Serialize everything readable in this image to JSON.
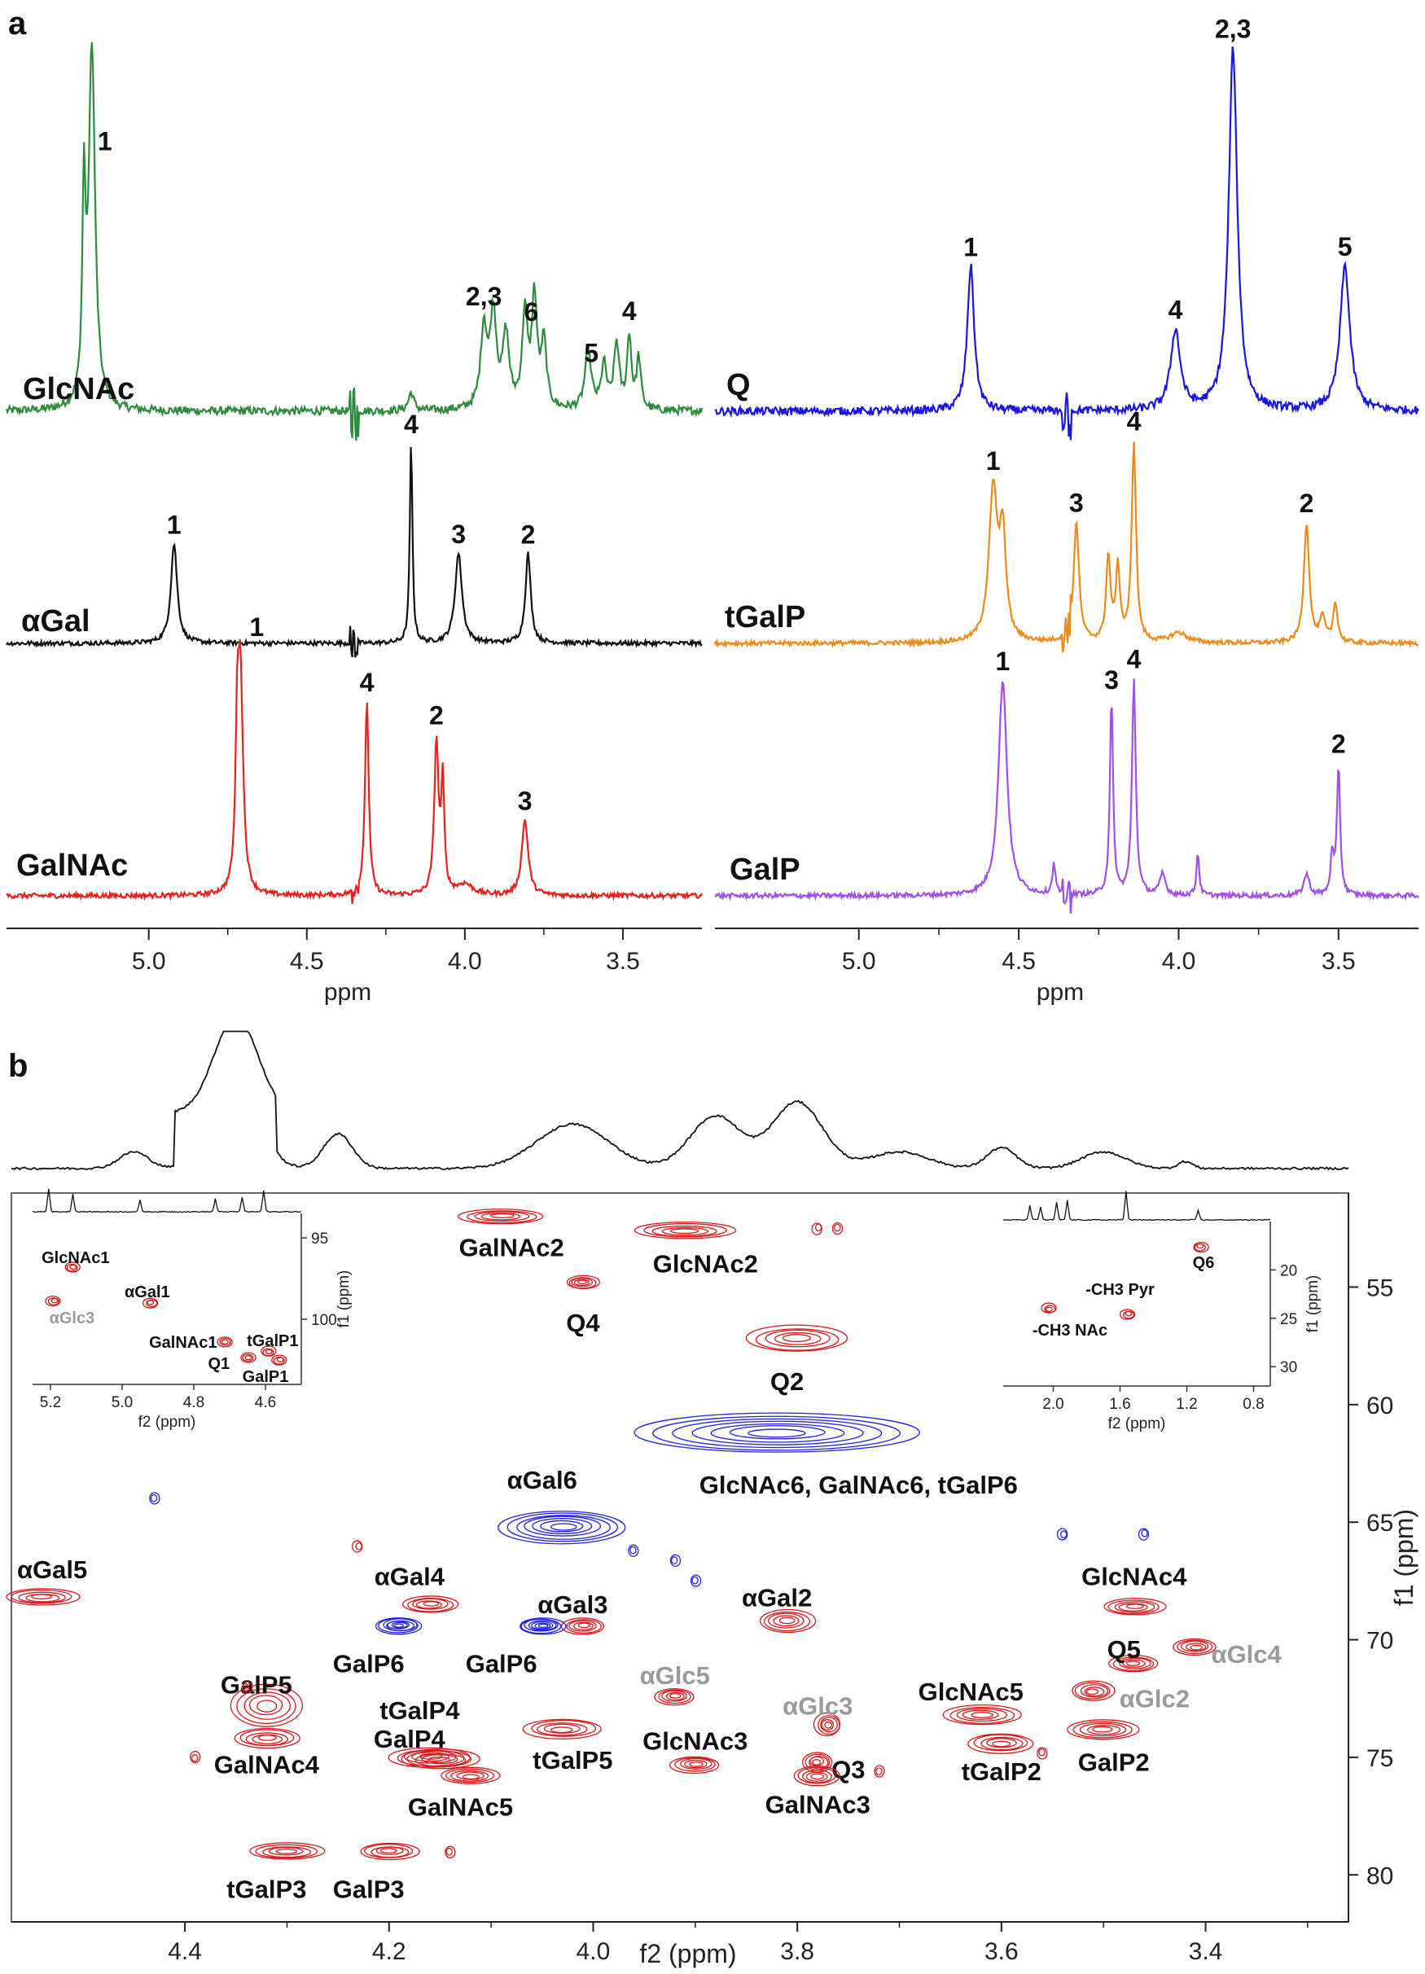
{
  "panel_labels": {
    "a": "a",
    "b": "b"
  },
  "panel_a": {
    "xlabel": "ppm",
    "ticks": [
      "5.0",
      "4.5",
      "4.0",
      "3.5"
    ],
    "spectra": [
      {
        "name": "GlcNAc",
        "color": "#2e8b3e",
        "peak_labels": [
          "1",
          "2,3",
          "6",
          "5",
          "4"
        ]
      },
      {
        "name": "αGal",
        "color": "#111111",
        "peak_labels": [
          "1",
          "4",
          "3",
          "2"
        ]
      },
      {
        "name": "GalNAc",
        "color": "#e8211c",
        "peak_labels": [
          "1",
          "4",
          "2",
          "3"
        ]
      },
      {
        "name": "Q",
        "color": "#1a16e0",
        "peak_labels": [
          "1",
          "4",
          "2,3",
          "5"
        ]
      },
      {
        "name": "tGalP",
        "color": "#ee8a1a",
        "peak_labels": [
          "1",
          "3",
          "4",
          "2"
        ]
      },
      {
        "name": "GalP",
        "color": "#a050e8",
        "peak_labels": [
          "1",
          "3",
          "4",
          "2"
        ]
      }
    ]
  },
  "panel_b": {
    "xlabel": "f2 (ppm)",
    "ylabel": "f1 (ppm)",
    "xticks": [
      "4.4",
      "4.2",
      "4.0",
      "3.8",
      "3.6",
      "3.4"
    ],
    "yticks": [
      "55",
      "60",
      "65",
      "70",
      "75",
      "80"
    ],
    "inset_left": {
      "xlabel": "f2 (ppm)",
      "ylabel": "f1 (ppm)",
      "xticks": [
        "5.2",
        "5.0",
        "4.8",
        "4.6"
      ],
      "yticks": [
        "95",
        "100"
      ]
    },
    "inset_right": {
      "xlabel": "f2 (ppm)",
      "ylabel": "f1 (ppm)",
      "xticks": [
        "2.0",
        "1.6",
        "1.2",
        "0.8"
      ],
      "yticks": [
        "20",
        "25",
        "30"
      ]
    }
  },
  "chart_data": [
    {
      "type": "line",
      "panel": "a-left",
      "xlabel": "ppm",
      "xlim": [
        5.45,
        3.25
      ],
      "series": [
        {
          "name": "GlcNAc",
          "peaks": [
            {
              "label": "1",
              "x": 5.18
            },
            {
              "label": "2,3",
              "x": 3.94
            },
            {
              "label": "6",
              "x": 3.79
            },
            {
              "label": "5",
              "x": 3.6
            },
            {
              "label": "4",
              "x": 3.48
            }
          ]
        },
        {
          "name": "αGal",
          "peaks": [
            {
              "label": "1",
              "x": 4.92
            },
            {
              "label": "4",
              "x": 4.17
            },
            {
              "label": "3",
              "x": 4.02
            },
            {
              "label": "2",
              "x": 3.8
            }
          ]
        },
        {
          "name": "GalNAc",
          "peaks": [
            {
              "label": "1",
              "x": 4.71
            },
            {
              "label": "4",
              "x": 4.31
            },
            {
              "label": "2",
              "x": 4.09
            },
            {
              "label": "3",
              "x": 3.81
            }
          ]
        }
      ]
    },
    {
      "type": "line",
      "panel": "a-right",
      "xlabel": "ppm",
      "xlim": [
        5.45,
        3.25
      ],
      "series": [
        {
          "name": "Q",
          "peaks": [
            {
              "label": "1",
              "x": 4.65
            },
            {
              "label": "4",
              "x": 4.01
            },
            {
              "label": "2,3",
              "x": 3.83
            },
            {
              "label": "5",
              "x": 3.48
            }
          ]
        },
        {
          "name": "tGalP",
          "peaks": [
            {
              "label": "1",
              "x": 4.58
            },
            {
              "label": "3",
              "x": 4.32
            },
            {
              "label": "4",
              "x": 4.14
            },
            {
              "label": "2",
              "x": 3.6
            }
          ]
        },
        {
          "name": "GalP",
          "peaks": [
            {
              "label": "1",
              "x": 4.55
            },
            {
              "label": "3",
              "x": 4.21
            },
            {
              "label": "4",
              "x": 4.14
            },
            {
              "label": "2",
              "x": 3.5
            }
          ]
        }
      ]
    },
    {
      "type": "scatter",
      "panel": "b",
      "xlabel": "f2 (ppm)",
      "ylabel": "f1 (ppm)",
      "xlim": [
        4.57,
        3.26
      ],
      "ylim": [
        51,
        82
      ],
      "points": [
        {
          "label": "GalNAc2",
          "x": 4.09,
          "y": 52.0,
          "sign": "pos",
          "lx": 4.08,
          "ly": 53.3,
          "grey": false
        },
        {
          "label": "GlcNAc2",
          "x": 3.91,
          "y": 52.6,
          "sign": "pos",
          "lx": 3.89,
          "ly": 54.0,
          "grey": false
        },
        {
          "label": "Q4",
          "x": 4.01,
          "y": 54.8,
          "sign": "pos",
          "lx": 4.01,
          "ly": 56.5,
          "grey": false
        },
        {
          "label": "Q2",
          "x": 3.8,
          "y": 57.2,
          "sign": "pos",
          "lx": 3.81,
          "ly": 59.0,
          "grey": false
        },
        {
          "label": "GlcNAc6, GalNAc6, tGalP6",
          "x": 3.82,
          "y": 61.2,
          "sign": "neg",
          "lx": 3.74,
          "ly": 63.4,
          "grey": false
        },
        {
          "label": "αGal6",
          "x": 4.03,
          "y": 65.2,
          "sign": "neg",
          "lx": 4.05,
          "ly": 63.2,
          "grey": false
        },
        {
          "label": "αGal5",
          "x": 4.54,
          "y": 68.2,
          "sign": "pos",
          "lx": 4.53,
          "ly": 67.0,
          "grey": false
        },
        {
          "label": "αGal4",
          "x": 4.16,
          "y": 68.5,
          "sign": "pos",
          "lx": 4.18,
          "ly": 67.3,
          "grey": false
        },
        {
          "label": "αGal3",
          "x": 4.01,
          "y": 69.4,
          "sign": "pos",
          "lx": 4.02,
          "ly": 68.5,
          "grey": false
        },
        {
          "label": "αGal2",
          "x": 3.81,
          "y": 69.2,
          "sign": "pos",
          "lx": 3.82,
          "ly": 68.2,
          "grey": false
        },
        {
          "label": "GalP6",
          "x": 4.19,
          "y": 69.4,
          "sign": "neg",
          "lx": 4.22,
          "ly": 71.0,
          "grey": false
        },
        {
          "label": "GalP6",
          "x": 4.05,
          "y": 69.4,
          "sign": "neg",
          "lx": 4.09,
          "ly": 71.0,
          "grey": false
        },
        {
          "label": "GlcNAc4",
          "x": 3.47,
          "y": 68.6,
          "sign": "pos",
          "lx": 3.47,
          "ly": 67.3,
          "grey": false
        },
        {
          "label": "Q5",
          "x": 3.47,
          "y": 71.0,
          "sign": "pos",
          "lx": 3.48,
          "ly": 70.4,
          "grey": false
        },
        {
          "label": "αGlc4",
          "x": 3.41,
          "y": 70.3,
          "sign": "pos",
          "lx": 3.36,
          "ly": 70.6,
          "grey": true
        },
        {
          "label": "αGlc2",
          "x": 3.51,
          "y": 72.2,
          "sign": "pos",
          "lx": 3.45,
          "ly": 72.5,
          "grey": true
        },
        {
          "label": "αGlc5",
          "x": 3.92,
          "y": 72.4,
          "sign": "pos",
          "lx": 3.92,
          "ly": 71.5,
          "grey": true
        },
        {
          "label": "αGlc3",
          "x": 3.77,
          "y": 73.6,
          "sign": "pos",
          "lx": 3.78,
          "ly": 72.8,
          "grey": true
        },
        {
          "label": "GalP5",
          "x": 4.32,
          "y": 72.8,
          "sign": "pos",
          "lx": 4.33,
          "ly": 71.9,
          "grey": false
        },
        {
          "label": "GalNAc4",
          "x": 4.32,
          "y": 74.2,
          "sign": "pos",
          "lx": 4.32,
          "ly": 75.3,
          "grey": false
        },
        {
          "label": "tGalP4",
          "x": 4.16,
          "y": 75.0,
          "sign": "pos",
          "lx": 4.17,
          "ly": 73.0,
          "grey": false
        },
        {
          "label": "GalP4",
          "x": 4.15,
          "y": 75.1,
          "sign": "pos",
          "lx": 4.18,
          "ly": 74.2,
          "grey": false
        },
        {
          "label": "GalNAc5",
          "x": 4.12,
          "y": 75.8,
          "sign": "pos",
          "lx": 4.13,
          "ly": 77.1,
          "grey": false
        },
        {
          "label": "tGalP5",
          "x": 4.03,
          "y": 73.8,
          "sign": "pos",
          "lx": 4.02,
          "ly": 75.1,
          "grey": false
        },
        {
          "label": "GlcNAc3",
          "x": 3.9,
          "y": 75.3,
          "sign": "pos",
          "lx": 3.9,
          "ly": 74.3,
          "grey": false
        },
        {
          "label": "Q3",
          "x": 3.78,
          "y": 75.2,
          "sign": "pos",
          "lx": 3.75,
          "ly": 75.5,
          "grey": false
        },
        {
          "label": "GalNAc3",
          "x": 3.78,
          "y": 75.8,
          "sign": "pos",
          "lx": 3.78,
          "ly": 77.0,
          "grey": false
        },
        {
          "label": "GlcNAc5",
          "x": 3.62,
          "y": 73.2,
          "sign": "pos",
          "lx": 3.63,
          "ly": 72.2,
          "grey": false
        },
        {
          "label": "tGalP2",
          "x": 3.6,
          "y": 74.4,
          "sign": "pos",
          "lx": 3.6,
          "ly": 75.6,
          "grey": false
        },
        {
          "label": "GalP2",
          "x": 3.5,
          "y": 73.8,
          "sign": "pos",
          "lx": 3.49,
          "ly": 75.2,
          "grey": false
        },
        {
          "label": "tGalP3",
          "x": 4.3,
          "y": 79.0,
          "sign": "pos",
          "lx": 4.32,
          "ly": 80.6,
          "grey": false
        },
        {
          "label": "GalP3",
          "x": 4.2,
          "y": 79.0,
          "sign": "pos",
          "lx": 4.22,
          "ly": 80.6,
          "grey": false
        }
      ]
    },
    {
      "type": "scatter",
      "panel": "b-inset-left",
      "xlabel": "f2 (ppm)",
      "ylabel": "f1 (ppm)",
      "points": [
        {
          "label": "GlcNAc1",
          "x": 5.14,
          "y": 96.8,
          "lx": 5.13,
          "ly": 96.2,
          "grey": false
        },
        {
          "label": "αGlc3",
          "x": 5.19,
          "y": 98.9,
          "lx": 5.14,
          "ly": 99.9,
          "grey": true
        },
        {
          "label": "αGal1",
          "x": 4.92,
          "y": 99.0,
          "lx": 4.93,
          "ly": 98.3,
          "grey": false
        },
        {
          "label": "GalNAc1",
          "x": 4.71,
          "y": 101.4,
          "lx": 4.83,
          "ly": 101.4,
          "grey": false
        },
        {
          "label": "tGalP1",
          "x": 4.59,
          "y": 102.0,
          "lx": 4.58,
          "ly": 101.3,
          "grey": false
        },
        {
          "label": "Q1",
          "x": 4.65,
          "y": 102.4,
          "lx": 4.73,
          "ly": 102.7,
          "grey": false
        },
        {
          "label": "GalP1",
          "x": 4.56,
          "y": 102.5,
          "lx": 4.6,
          "ly": 103.5,
          "grey": false
        }
      ]
    },
    {
      "type": "scatter",
      "panel": "b-inset-right",
      "xlabel": "f2 (ppm)",
      "ylabel": "f1 (ppm)",
      "points": [
        {
          "label": "-CH3 NAc",
          "x": 2.02,
          "y": 24.0,
          "lx": 1.9,
          "ly": 26.2,
          "grey": false
        },
        {
          "label": "-CH3 Pyr",
          "x": 1.55,
          "y": 24.6,
          "lx": 1.6,
          "ly": 22.0,
          "grey": false
        },
        {
          "label": "Q6",
          "x": 1.12,
          "y": 17.6,
          "lx": 1.1,
          "ly": 19.2,
          "grey": false
        }
      ]
    }
  ]
}
